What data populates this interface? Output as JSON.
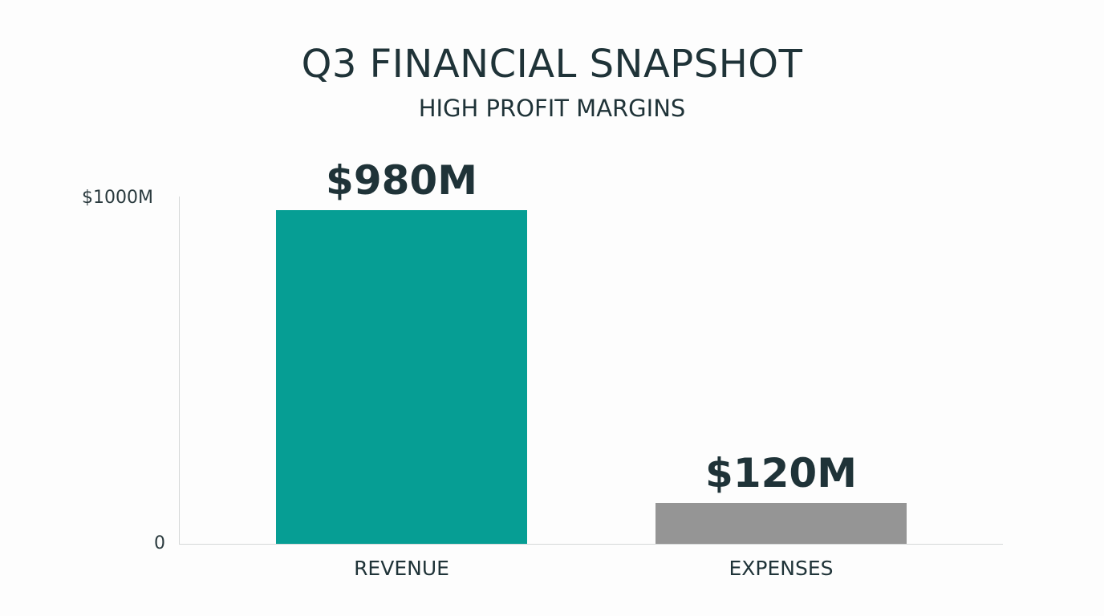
{
  "chart_data": {
    "type": "bar",
    "title": "Q3 FINANCIAL SNAPSHOT",
    "subtitle": "HIGH PROFIT MARGINS",
    "categories": [
      "REVENUE",
      "EXPENSES"
    ],
    "values": [
      980,
      120
    ],
    "value_labels": [
      "$980M",
      "$120M"
    ],
    "colors": [
      "#069e94",
      "#959595"
    ],
    "xlabel": "",
    "ylabel": "",
    "ylim": [
      0,
      1000
    ],
    "yticks": [
      {
        "value": 0,
        "label": "0"
      },
      {
        "value": 1000,
        "label": "$1000M"
      }
    ],
    "grid": false,
    "legend": null
  }
}
